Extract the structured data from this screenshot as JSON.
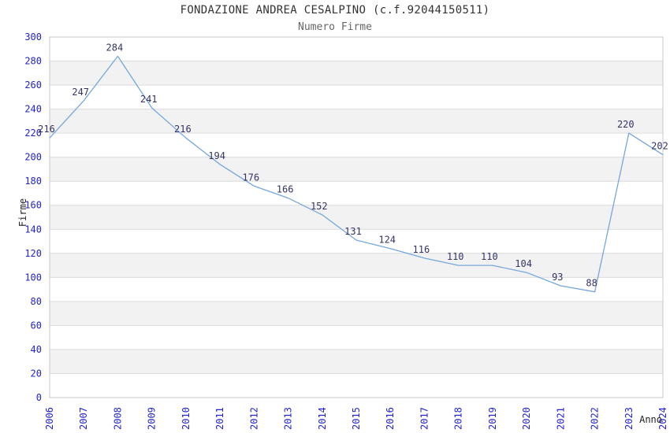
{
  "chart_data": {
    "type": "line",
    "title": "FONDAZIONE ANDREA CESALPINO (c.f.92044150511)",
    "subtitle": "Numero Firme",
    "xlabel": "Anno",
    "ylabel": "Firme",
    "x": [
      2006,
      2007,
      2008,
      2009,
      2010,
      2011,
      2012,
      2013,
      2014,
      2015,
      2016,
      2017,
      2018,
      2019,
      2020,
      2021,
      2022,
      2023,
      2024
    ],
    "series": [
      {
        "name": "Numero Firme",
        "values": [
          216,
          247,
          284,
          241,
          216,
          194,
          176,
          166,
          152,
          131,
          124,
          116,
          110,
          110,
          104,
          93,
          88,
          220,
          202
        ]
      }
    ],
    "ylim": [
      0,
      300
    ],
    "yticks": [
      0,
      20,
      40,
      60,
      80,
      100,
      120,
      140,
      160,
      180,
      200,
      220,
      240,
      260,
      280,
      300
    ],
    "grid": true,
    "band_style": "alternating-horizontal",
    "legend": "none",
    "data_labels": true,
    "x_tick_rotation": 90,
    "colors": {
      "line": "#74a7dc",
      "tick_label": "#2323cc",
      "data_label": "#333366",
      "band": "#f2f2f2",
      "grid": "#dcdcdc",
      "border": "#c8c8c8",
      "title": "#333333",
      "subtitle": "#666666",
      "axis_title": "#222222"
    }
  }
}
